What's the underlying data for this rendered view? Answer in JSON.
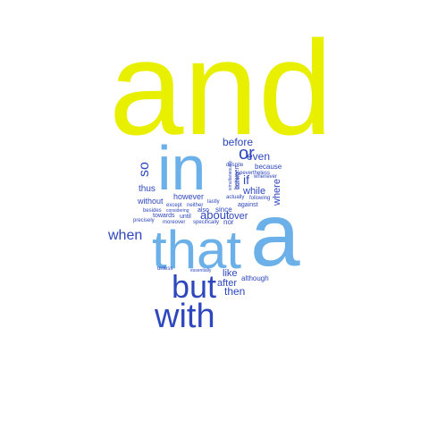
{
  "colors": {
    "yellow": "#e8f000",
    "light_blue": "#6bb0e8",
    "dark_blue": "#2e47bd"
  },
  "words": [
    {
      "text": "and",
      "color": "yellow"
    },
    {
      "text": "in",
      "color": "light_blue"
    },
    {
      "text": "a",
      "color": "light_blue"
    },
    {
      "text": "that",
      "color": "light_blue"
    },
    {
      "text": "but",
      "color": "dark_blue"
    },
    {
      "text": "with",
      "color": "dark_blue"
    },
    {
      "text": "or",
      "color": "dark_blue"
    },
    {
      "text": "so",
      "color": "dark_blue"
    },
    {
      "text": "when",
      "color": "dark_blue"
    },
    {
      "text": "before",
      "color": "dark_blue"
    },
    {
      "text": "even",
      "color": "dark_blue"
    },
    {
      "text": "if",
      "color": "dark_blue"
    },
    {
      "text": "while",
      "color": "dark_blue"
    },
    {
      "text": "where",
      "color": "dark_blue"
    },
    {
      "text": "about",
      "color": "dark_blue"
    },
    {
      "text": "over",
      "color": "dark_blue"
    },
    {
      "text": "then",
      "color": "dark_blue"
    },
    {
      "text": "after",
      "color": "dark_blue"
    },
    {
      "text": "like",
      "color": "dark_blue"
    },
    {
      "text": "thus",
      "color": "dark_blue"
    },
    {
      "text": "without",
      "color": "dark_blue"
    },
    {
      "text": "however",
      "color": "dark_blue"
    },
    {
      "text": "because",
      "color": "dark_blue"
    },
    {
      "text": "despite",
      "color": "dark_blue"
    },
    {
      "text": "nevertheless",
      "color": "dark_blue"
    },
    {
      "text": "whenever",
      "color": "dark_blue"
    },
    {
      "text": "during",
      "color": "dark_blue"
    },
    {
      "text": "simultaneously",
      "color": "dark_blue"
    },
    {
      "text": "between",
      "color": "dark_blue"
    },
    {
      "text": "lastly",
      "color": "dark_blue"
    },
    {
      "text": "actually",
      "color": "dark_blue"
    },
    {
      "text": "following",
      "color": "dark_blue"
    },
    {
      "text": "against",
      "color": "dark_blue"
    },
    {
      "text": "except",
      "color": "dark_blue"
    },
    {
      "text": "neither",
      "color": "dark_blue"
    },
    {
      "text": "also",
      "color": "dark_blue"
    },
    {
      "text": "since",
      "color": "dark_blue"
    },
    {
      "text": "besides",
      "color": "dark_blue"
    },
    {
      "text": "considering",
      "color": "dark_blue"
    },
    {
      "text": "towards",
      "color": "dark_blue"
    },
    {
      "text": "until",
      "color": "dark_blue"
    },
    {
      "text": "nor",
      "color": "dark_blue"
    },
    {
      "text": "precisely",
      "color": "dark_blue"
    },
    {
      "text": "moreover",
      "color": "dark_blue"
    },
    {
      "text": "specifically",
      "color": "dark_blue"
    },
    {
      "text": "unless",
      "color": "dark_blue"
    },
    {
      "text": "essentially",
      "color": "dark_blue"
    },
    {
      "text": "although",
      "color": "dark_blue"
    }
  ]
}
